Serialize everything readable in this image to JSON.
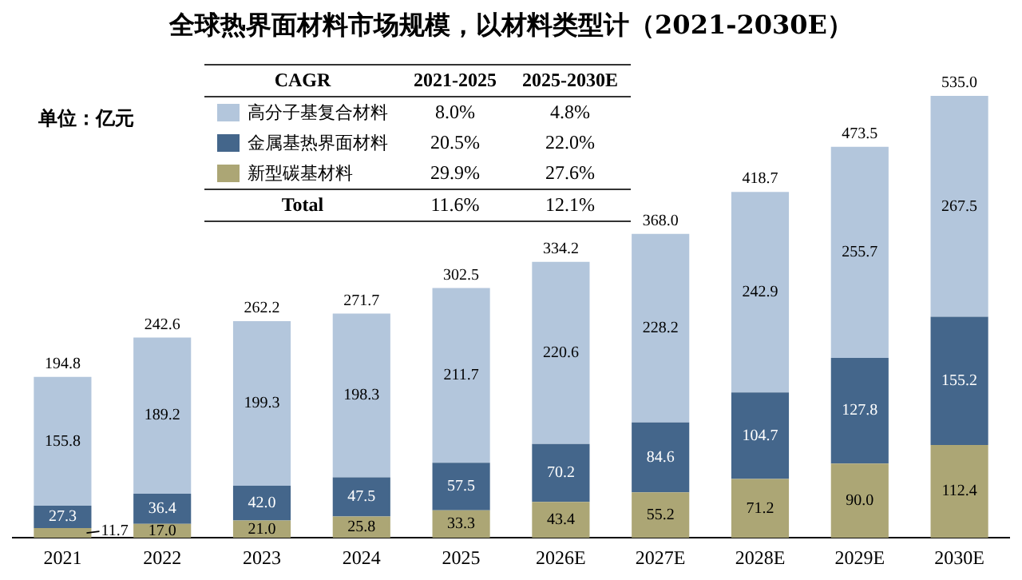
{
  "chart_data": {
    "type": "bar",
    "title": "全球热界面材料市场规模，以材料类型计（2021-2030E）",
    "ylabel": "单位：亿元",
    "categories": [
      "2021",
      "2022",
      "2023",
      "2024",
      "2025",
      "2026E",
      "2027E",
      "2028E",
      "2029E",
      "2030E"
    ],
    "stacked": true,
    "legend": "top",
    "grid": false,
    "series": [
      {
        "name": "新型碳基材料",
        "color": "#aca675",
        "values": [
          11.7,
          17.0,
          21.0,
          25.8,
          33.3,
          43.4,
          55.2,
          71.2,
          90.0,
          112.4
        ],
        "value_labels": [
          "11.7",
          "17.0",
          "21.0",
          "25.8",
          "33.3",
          "43.4",
          "55.2",
          "71.2",
          "90.0",
          "112.4"
        ]
      },
      {
        "name": "金属基热界面材料",
        "color": "#44668b",
        "values": [
          27.3,
          36.4,
          42.0,
          47.5,
          57.5,
          70.2,
          84.6,
          104.7,
          127.8,
          155.2
        ],
        "value_labels": [
          "27.3",
          "36.4",
          "42.0",
          "47.5",
          "57.5",
          "70.2",
          "84.6",
          "104.7",
          "127.8",
          "155.2"
        ]
      },
      {
        "name": "高分子基复合材料",
        "color": "#b3c6dc",
        "values": [
          155.8,
          189.2,
          199.3,
          198.3,
          211.7,
          220.6,
          228.2,
          242.9,
          255.7,
          267.5
        ],
        "value_labels": [
          "155.8",
          "189.2",
          "199.3",
          "198.3",
          "211.7",
          "220.6",
          "228.2",
          "242.9",
          "255.7",
          "267.5"
        ]
      }
    ],
    "totals": [
      "194.8",
      "242.6",
      "262.2",
      "271.7",
      "302.5",
      "334.2",
      "368.0",
      "418.7",
      "473.5",
      "535.0"
    ],
    "annotations": [
      "CAGR",
      "2021-2025",
      "2025-2030E",
      "29.9%",
      "27.6%",
      "20.5%",
      "22.0%",
      "8.0%",
      "4.8%",
      "Total",
      "11.6%",
      "12.1%"
    ]
  }
}
